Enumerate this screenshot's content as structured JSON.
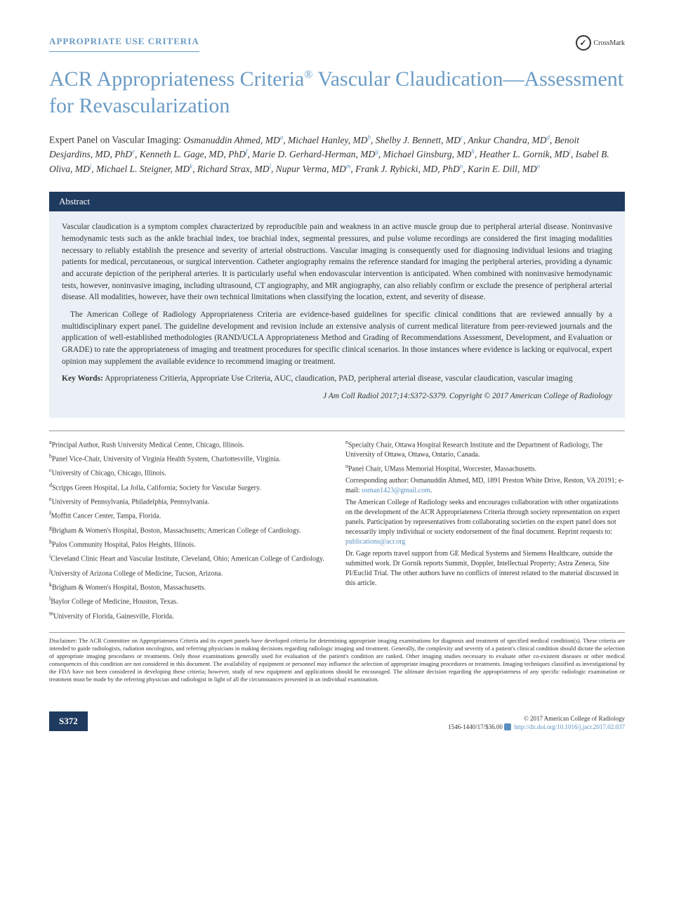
{
  "section_label": "APPROPRIATE USE CRITERIA",
  "crossmark_label": "CrossMark",
  "title_prefix": "ACR Appropriateness Criteria",
  "title_suffix": " Vascular Claudication—Assessment for Revascularization",
  "registered": "®",
  "panel_prefix": "Expert Panel on Vascular Imaging: ",
  "authors": [
    {
      "name": "Osmanuddin Ahmed, MD",
      "sup": "a"
    },
    {
      "name": "Michael Hanley, MD",
      "sup": "b"
    },
    {
      "name": "Shelby J. Bennett, MD",
      "sup": "c"
    },
    {
      "name": "Ankur Chandra, MD",
      "sup": "d"
    },
    {
      "name": "Benoit Desjardins, MD, PhD",
      "sup": "e"
    },
    {
      "name": "Kenneth L. Gage, MD, PhD",
      "sup": "f"
    },
    {
      "name": "Marie D. Gerhard-Herman, MD",
      "sup": "g"
    },
    {
      "name": "Michael Ginsburg, MD",
      "sup": "h"
    },
    {
      "name": "Heather L. Gornik, MD",
      "sup": "i"
    },
    {
      "name": "Isabel B. Oliva, MD",
      "sup": "j"
    },
    {
      "name": "Michael L. Steigner, MD",
      "sup": "k"
    },
    {
      "name": "Richard Strax, MD",
      "sup": "l"
    },
    {
      "name": "Nupur Verma, MD",
      "sup": "m"
    },
    {
      "name": "Frank J. Rybicki, MD, PhD",
      "sup": "n"
    },
    {
      "name": "Karin E. Dill, MD",
      "sup": "o"
    }
  ],
  "abstract_label": "Abstract",
  "abstract_p1": "Vascular claudication is a symptom complex characterized by reproducible pain and weakness in an active muscle group due to peripheral arterial disease. Noninvasive hemodynamic tests such as the ankle brachial index, toe brachial index, segmental pressures, and pulse volume recordings are considered the first imaging modalities necessary to reliably establish the presence and severity of arterial obstructions. Vascular imaging is consequently used for diagnosing individual lesions and triaging patients for medical, percutaneous, or surgical intervention. Catheter angiography remains the reference standard for imaging the peripheral arteries, providing a dynamic and accurate depiction of the peripheral arteries. It is particularly useful when endovascular intervention is anticipated. When combined with noninvasive hemodynamic tests, however, noninvasive imaging, including ultrasound, CT angiography, and MR angiography, can also reliably confirm or exclude the presence of peripheral arterial disease. All modalities, however, have their own technical limitations when classifying the location, extent, and severity of disease.",
  "abstract_p2": "The American College of Radiology Appropriateness Criteria are evidence-based guidelines for specific clinical conditions that are reviewed annually by a multidisciplinary expert panel. The guideline development and revision include an extensive analysis of current medical literature from peer-reviewed journals and the application of well-established methodologies (RAND/UCLA Appropriateness Method and Grading of Recommendations Assessment, Development, and Evaluation or GRADE) to rate the appropriateness of imaging and treatment procedures for specific clinical scenarios. In those instances where evidence is lacking or equivocal, expert opinion may supplement the available evidence to recommend imaging or treatment.",
  "keywords_label": "Key Words:",
  "keywords_text": " Appropriateness Critieria, Appropriate Use Criteria, AUC, claudication, PAD, peripheral arterial disease, vascular claudication, vascular imaging",
  "citation": "J Am Coll Radiol 2017;14:S372-S379. Copyright © 2017 American College of Radiology",
  "affiliations_left": [
    {
      "sup": "a",
      "text": "Principal Author, Rush University Medical Center, Chicago, Illinois."
    },
    {
      "sup": "b",
      "text": "Panel Vice-Chair, University of Virginia Health System, Charlottesville, Virginia."
    },
    {
      "sup": "c",
      "text": "University of Chicago, Chicago, Illinois."
    },
    {
      "sup": "d",
      "text": "Scripps Green Hospital, La Jolla, California; Society for Vascular Surgery."
    },
    {
      "sup": "e",
      "text": "University of Pennsylvania, Philadelphia, Pennsylvania."
    },
    {
      "sup": "f",
      "text": "Moffitt Cancer Center, Tampa, Florida."
    },
    {
      "sup": "g",
      "text": "Brigham & Women's Hospital, Boston, Massachusetts; American College of Cardiology."
    },
    {
      "sup": "h",
      "text": "Palos Community Hospital, Palos Heights, Illinois."
    },
    {
      "sup": "i",
      "text": "Cleveland Clinic Heart and Vascular Institute, Cleveland, Ohio; American College of Cardiology."
    },
    {
      "sup": "j",
      "text": "University of Arizona College of Medicine, Tucson, Arizona."
    },
    {
      "sup": "k",
      "text": "Brigham & Women's Hospital, Boston, Massachusetts."
    },
    {
      "sup": "l",
      "text": "Baylor College of Medicine, Houston, Texas."
    },
    {
      "sup": "m",
      "text": "University of Florida, Gainesville, Florida."
    }
  ],
  "affiliations_right": [
    {
      "sup": "n",
      "text": "Specialty Chair, Ottawa Hospital Research Institute and the Department of Radiology, The University of Ottawa, Ottawa, Ontario, Canada."
    },
    {
      "sup": "o",
      "text": "Panel Chair, UMass Memorial Hospital, Worcester, Massachusetts."
    }
  ],
  "corresponding_prefix": "Corresponding author: Osmanuddin Ahmed, MD, 1891 Preston White Drive, Reston, VA 20191; e-mail: ",
  "corresponding_email": "osman1423@gmail.com",
  "correspondence_period": ".",
  "collab_text": "The American College of Radiology seeks and encourages collaboration with other organizations on the development of the ACR Appropriateness Criteria through society representation on expert panels. Participation by representatives from collaborating societies on the expert panel does not necessarily imply individual or society endorsement of the final document. Reprint requests to: ",
  "reprint_email": "publications@acr.org",
  "coi_text": "Dr. Gage reports travel support from GE Medical Systems and Siemens Healthcare, outside the submitted work. Dr Gornik reports Summit, Doppler, Intellectual Property; Astra Zeneca, Site PI/Euclid Trial. The other authors have no conflicts of interest related to the material discussed in this article.",
  "disclaimer": "Disclaimer: The ACR Committee on Appropriateness Criteria and its expert panels have developed criteria for determining appropriate imaging examinations for diagnosis and treatment of specified medical condition(s). These criteria are intended to guide radiologists, radiation oncologists, and referring physicians in making decisions regarding radiologic imaging and treatment. Generally, the complexity and severity of a patient's clinical condition should dictate the selection of appropriate imaging procedures or treatments. Only those examinations generally used for evaluation of the patient's condition are ranked. Other imaging studies necessary to evaluate other co-existent diseases or other medical consequences of this condition are not considered in this document. The availability of equipment or personnel may influence the selection of appropriate imaging procedures or treatments. Imaging techniques classified as investigational by the FDA have not been considered in developing these criteria; however, study of new equipment and applications should be encouraged. The ultimate decision regarding the appropriateness of any specific radiologic examination or treatment must be made by the referring physician and radiologist in light of all the circumstances presented in an individual examination.",
  "page_number": "S372",
  "copyright_line": "© 2017 American College of Radiology",
  "issn_line": "1546-1440/17/$36.00 ",
  "doi": "http://dx.doi.org/10.1016/j.jacr.2017.02.037",
  "colors": {
    "header_blue": "#6a9bc4",
    "dark_blue": "#1f3a5f",
    "abstract_bg": "#eaf0f6",
    "link": "#5a8fc0"
  }
}
